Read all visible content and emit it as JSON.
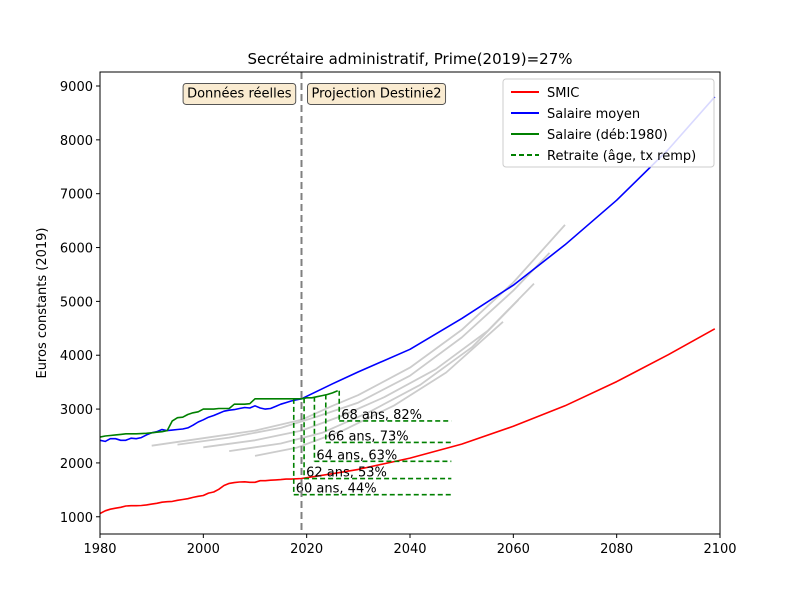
{
  "chart_data": {
    "type": "line",
    "title": "Secrétaire administratif, Prime(2019)=27%",
    "xlabel": "",
    "ylabel": "Euros constants (2019)",
    "xlim": [
      1980,
      2100
    ],
    "ylim": [
      680,
      9260
    ],
    "xticks": [
      1980,
      2000,
      2020,
      2040,
      2060,
      2080,
      2100
    ],
    "yticks": [
      1000,
      2000,
      3000,
      4000,
      5000,
      6000,
      7000,
      8000,
      9000
    ],
    "grid": false,
    "legend_position": "top-right",
    "colors": {
      "smic": "#ff0000",
      "salaire_moyen": "#0000ff",
      "salaire": "#008000",
      "retraite": "#008000",
      "cohorts": "#cccccc",
      "divider": "#808080",
      "box_fill": "#f5deb3"
    },
    "divider_year": 2019,
    "annotations": [
      {
        "text": "Données réelles",
        "x": 2013,
        "y": 8880,
        "align": "right"
      },
      {
        "text": "Projection Destinie2",
        "x": 2020,
        "y": 8880,
        "align": "left"
      }
    ],
    "legend": [
      {
        "label": "SMIC",
        "style": "solid",
        "color": "#ff0000"
      },
      {
        "label": "Salaire moyen",
        "style": "solid",
        "color": "#0000ff"
      },
      {
        "label": "Salaire (déb:1980)",
        "style": "solid",
        "color": "#008000"
      },
      {
        "label": "Retraite (âge, tx remp)",
        "style": "dashed",
        "color": "#008000"
      }
    ],
    "series": [
      {
        "name": "SMIC",
        "color": "#ff0000",
        "x": [
          1980,
          1981,
          1982,
          1983,
          1984,
          1985,
          1986,
          1987,
          1988,
          1989,
          1990,
          1991,
          1992,
          1993,
          1994,
          1995,
          1996,
          1997,
          1998,
          1999,
          2000,
          2001,
          2002,
          2003,
          2004,
          2005,
          2006,
          2007,
          2008,
          2009,
          2010,
          2011,
          2012,
          2013,
          2014,
          2015,
          2016,
          2017,
          2018,
          2019,
          2025,
          2030,
          2040,
          2050,
          2060,
          2070,
          2080,
          2090,
          2099
        ],
        "y": [
          1060,
          1110,
          1140,
          1160,
          1175,
          1200,
          1205,
          1205,
          1210,
          1220,
          1235,
          1250,
          1270,
          1280,
          1285,
          1305,
          1320,
          1335,
          1360,
          1380,
          1395,
          1440,
          1460,
          1510,
          1580,
          1620,
          1635,
          1645,
          1650,
          1640,
          1640,
          1670,
          1670,
          1680,
          1685,
          1690,
          1700,
          1700,
          1705,
          1710,
          1800,
          1880,
          2090,
          2350,
          2680,
          3060,
          3510,
          4010,
          4490
        ]
      },
      {
        "name": "Salaire moyen",
        "color": "#0000ff",
        "x": [
          1980,
          1981,
          1982,
          1983,
          1984,
          1985,
          1986,
          1987,
          1988,
          1989,
          1990,
          1991,
          1992,
          1993,
          1994,
          1995,
          1996,
          1997,
          1998,
          1999,
          2000,
          2001,
          2002,
          2003,
          2004,
          2005,
          2006,
          2007,
          2008,
          2009,
          2010,
          2011,
          2012,
          2013,
          2014,
          2015,
          2016,
          2017,
          2018,
          2019,
          2025,
          2030,
          2040,
          2050,
          2060,
          2070,
          2080,
          2090,
          2099
        ],
        "y": [
          2420,
          2400,
          2450,
          2450,
          2420,
          2420,
          2460,
          2450,
          2470,
          2520,
          2560,
          2580,
          2620,
          2600,
          2610,
          2620,
          2630,
          2650,
          2700,
          2760,
          2800,
          2850,
          2880,
          2920,
          2960,
          2980,
          2990,
          3010,
          3030,
          3020,
          3060,
          3020,
          3000,
          3010,
          3050,
          3090,
          3120,
          3150,
          3170,
          3190,
          3470,
          3690,
          4110,
          4680,
          5300,
          6050,
          6880,
          7820,
          8800
        ]
      },
      {
        "name": "Salaire (déb:1980)",
        "color": "#008000",
        "x": [
          1980,
          1981,
          1982,
          1983,
          1984,
          1985,
          1986,
          1987,
          1988,
          1989,
          1990,
          1991,
          1992,
          1993,
          1994,
          1995,
          1996,
          1997,
          1998,
          1999,
          2000,
          2001,
          2002,
          2003,
          2004,
          2005,
          2006,
          2007,
          2008,
          2009,
          2010,
          2011,
          2012,
          2013,
          2014,
          2015,
          2016,
          2017,
          2018,
          2019,
          2020,
          2021,
          2022,
          2023,
          2024,
          2025,
          2026
        ],
        "y": [
          2480,
          2500,
          2510,
          2520,
          2530,
          2540,
          2540,
          2540,
          2545,
          2550,
          2560,
          2570,
          2580,
          2600,
          2780,
          2840,
          2850,
          2900,
          2930,
          2950,
          3000,
          3000,
          3000,
          3010,
          3010,
          3010,
          3090,
          3090,
          3090,
          3100,
          3190,
          3190,
          3190,
          3190,
          3190,
          3190,
          3190,
          3190,
          3190,
          3190,
          3210,
          3210,
          3230,
          3250,
          3270,
          3300,
          3340
        ]
      },
      {
        "name": "cohort-a",
        "color": "#cccccc",
        "x": [
          1990,
          2000,
          2010,
          2019,
          2025,
          2030,
          2040,
          2050,
          2060,
          2070
        ],
        "y": [
          2320,
          2460,
          2600,
          2800,
          3060,
          3260,
          3770,
          4470,
          5350,
          6420
        ]
      },
      {
        "name": "cohort-b",
        "color": "#cccccc",
        "x": [
          1995,
          2005,
          2015,
          2022,
          2030,
          2040,
          2050,
          2060,
          2067
        ],
        "y": [
          2340,
          2470,
          2650,
          2860,
          3120,
          3620,
          4330,
          5200,
          5900
        ]
      },
      {
        "name": "cohort-c",
        "color": "#cccccc",
        "x": [
          2000,
          2010,
          2019,
          2027,
          2035,
          2045,
          2055,
          2064
        ],
        "y": [
          2290,
          2420,
          2600,
          2880,
          3220,
          3740,
          4450,
          5330
        ]
      },
      {
        "name": "cohort-d",
        "color": "#cccccc",
        "x": [
          2005,
          2015,
          2023,
          2032,
          2042,
          2052,
          2061
        ],
        "y": [
          2220,
          2360,
          2560,
          2940,
          3450,
          4150,
          5030
        ]
      },
      {
        "name": "cohort-e",
        "color": "#cccccc",
        "x": [
          2010,
          2018,
          2027,
          2037,
          2047,
          2058
        ],
        "y": [
          2130,
          2280,
          2600,
          3070,
          3680,
          4620
        ]
      }
    ],
    "retirements": [
      {
        "label": "60 ans, 44%",
        "start_year": 2017.5,
        "end_year": 2048,
        "salary": 3190,
        "pension": 1410
      },
      {
        "label": "62 ans, 53%",
        "start_year": 2019.5,
        "end_year": 2048,
        "salary": 3200,
        "pension": 1710
      },
      {
        "label": "64 ans, 63%",
        "start_year": 2021.5,
        "end_year": 2048,
        "salary": 3230,
        "pension": 2030
      },
      {
        "label": "66 ans, 73%",
        "start_year": 2023.7,
        "end_year": 2048,
        "salary": 3270,
        "pension": 2380
      },
      {
        "label": "68 ans, 82%",
        "start_year": 2026.3,
        "end_year": 2048,
        "salary": 3340,
        "pension": 2780
      }
    ]
  }
}
